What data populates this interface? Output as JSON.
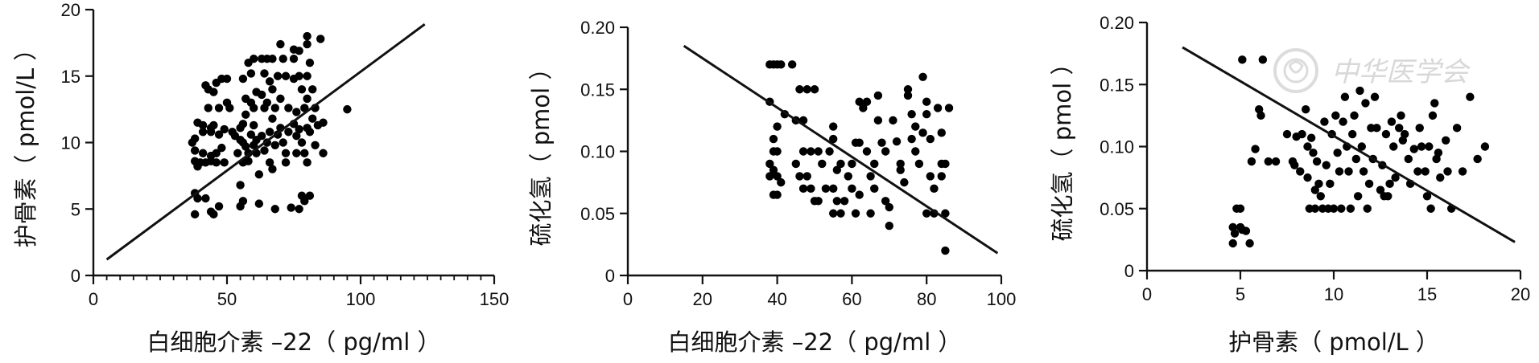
{
  "watermark": {
    "text": "中华医学会",
    "color": "#d9d9d9"
  },
  "chart_data": [
    {
      "type": "scatter",
      "xlabel": "白细胞介素 –22（ pg/ml ）",
      "ylabel": "护骨素（ pmol/L ）",
      "xlim": [
        0,
        150
      ],
      "ylim": [
        0,
        20
      ],
      "xticks": [
        0,
        50,
        100,
        150
      ],
      "yticks": [
        0,
        5,
        10,
        15,
        20
      ],
      "x_minor_step": 5,
      "point_color": "#000000",
      "fit_line": [
        [
          5,
          1.2
        ],
        [
          124,
          18.9
        ]
      ],
      "points": [
        [
          37,
          10.0
        ],
        [
          38,
          10.3
        ],
        [
          38,
          9.4
        ],
        [
          39,
          11.5
        ],
        [
          38,
          8.6
        ],
        [
          39,
          8.2
        ],
        [
          38,
          6.2
        ],
        [
          39,
          5.8
        ],
        [
          38,
          4.6
        ],
        [
          40,
          8.5
        ],
        [
          41,
          10.8
        ],
        [
          41,
          11.3
        ],
        [
          41,
          9.2
        ],
        [
          42,
          8.5
        ],
        [
          42,
          14.3
        ],
        [
          42,
          5.8
        ],
        [
          43,
          14.0
        ],
        [
          43,
          12.6
        ],
        [
          44,
          11.1
        ],
        [
          44,
          10.8
        ],
        [
          44,
          9.0
        ],
        [
          44,
          8.6
        ],
        [
          44,
          4.8
        ],
        [
          45,
          13.8
        ],
        [
          45,
          11.3
        ],
        [
          45,
          4.6
        ],
        [
          46,
          14.5
        ],
        [
          46,
          9.2
        ],
        [
          46,
          8.5
        ],
        [
          47,
          10.6
        ],
        [
          47,
          12.6
        ],
        [
          47,
          5.2
        ],
        [
          48,
          14.8
        ],
        [
          48,
          9.6
        ],
        [
          49,
          11.0
        ],
        [
          49,
          8.5
        ],
        [
          50,
          13.0
        ],
        [
          50,
          14.8
        ],
        [
          51,
          12.6
        ],
        [
          52,
          10.8
        ],
        [
          53,
          10.5
        ],
        [
          54,
          9.2
        ],
        [
          55,
          11.1
        ],
        [
          55,
          10.2
        ],
        [
          55,
          6.8
        ],
        [
          55,
          5.2
        ],
        [
          56,
          14.8
        ],
        [
          56,
          11.4
        ],
        [
          56,
          10.0
        ],
        [
          56,
          8.5
        ],
        [
          56,
          5.6
        ],
        [
          57,
          13.3
        ],
        [
          57,
          12.1
        ],
        [
          57,
          9.7
        ],
        [
          58,
          16.0
        ],
        [
          58,
          9.2
        ],
        [
          58,
          8.6
        ],
        [
          59,
          15.2
        ],
        [
          59,
          13.0
        ],
        [
          59,
          10.6
        ],
        [
          60,
          16.3
        ],
        [
          60,
          12.6
        ],
        [
          60,
          11.3
        ],
        [
          60,
          9.8
        ],
        [
          61,
          13.8
        ],
        [
          61,
          10.2
        ],
        [
          61,
          9.2
        ],
        [
          62,
          7.6
        ],
        [
          62,
          5.4
        ],
        [
          63,
          16.3
        ],
        [
          63,
          13.6
        ],
        [
          63,
          10.5
        ],
        [
          64,
          15.2
        ],
        [
          64,
          12.6
        ],
        [
          64,
          9.4
        ],
        [
          65,
          16.3
        ],
        [
          65,
          13.0
        ],
        [
          65,
          10.0
        ],
        [
          66,
          14.6
        ],
        [
          66,
          10.8
        ],
        [
          66,
          8.5
        ],
        [
          67,
          16.3
        ],
        [
          67,
          14.0
        ],
        [
          67,
          11.8
        ],
        [
          67,
          8.0
        ],
        [
          68,
          12.6
        ],
        [
          68,
          9.8
        ],
        [
          68,
          5.0
        ],
        [
          69,
          15.0
        ],
        [
          69,
          10.6
        ],
        [
          70,
          17.4
        ],
        [
          70,
          13.3
        ],
        [
          70,
          11.1
        ],
        [
          71,
          16.3
        ],
        [
          71,
          10.0
        ],
        [
          72,
          15.0
        ],
        [
          72,
          9.2
        ],
        [
          72,
          8.5
        ],
        [
          73,
          12.6
        ],
        [
          73,
          10.8
        ],
        [
          74,
          5.1
        ],
        [
          75,
          17.0
        ],
        [
          75,
          16.3
        ],
        [
          75,
          14.8
        ],
        [
          75,
          11.4
        ],
        [
          76,
          12.3
        ],
        [
          76,
          10.5
        ],
        [
          76,
          9.2
        ],
        [
          77,
          16.9
        ],
        [
          77,
          15.0
        ],
        [
          77,
          11.0
        ],
        [
          77,
          5.0
        ],
        [
          78,
          14.0
        ],
        [
          78,
          10.0
        ],
        [
          78,
          6.0
        ],
        [
          79,
          12.6
        ],
        [
          79,
          9.2
        ],
        [
          79,
          5.6
        ],
        [
          80,
          18.0
        ],
        [
          80,
          17.4
        ],
        [
          80,
          15.0
        ],
        [
          80,
          13.3
        ],
        [
          80,
          11.1
        ],
        [
          80,
          8.5
        ],
        [
          81,
          16.0
        ],
        [
          81,
          10.8
        ],
        [
          81,
          6.0
        ],
        [
          82,
          14.0
        ],
        [
          82,
          11.8
        ],
        [
          83,
          12.6
        ],
        [
          83,
          9.8
        ],
        [
          84,
          11.3
        ],
        [
          85,
          17.8
        ],
        [
          86,
          11.5
        ],
        [
          86,
          9.2
        ],
        [
          95,
          12.5
        ]
      ]
    },
    {
      "type": "scatter",
      "xlabel": "白细胞介素 –22（ pg/ml ）",
      "ylabel": "硫化氢（ pmol ）",
      "xlim": [
        0,
        100
      ],
      "ylim": [
        0,
        0.2
      ],
      "xticks": [
        0,
        20,
        40,
        60,
        80,
        100
      ],
      "yticks": [
        0,
        0.05,
        0.1,
        0.15,
        0.2
      ],
      "ytick_labels": [
        "0",
        "0.05",
        "0.10",
        "0.15",
        "0.20"
      ],
      "point_color": "#000000",
      "fit_line": [
        [
          15,
          0.185
        ],
        [
          99,
          0.018
        ]
      ],
      "points": [
        [
          38,
          0.17
        ],
        [
          39,
          0.17
        ],
        [
          40,
          0.17
        ],
        [
          41,
          0.17
        ],
        [
          44,
          0.17
        ],
        [
          38,
          0.14
        ],
        [
          39,
          0.11
        ],
        [
          40,
          0.12
        ],
        [
          39,
          0.1
        ],
        [
          40,
          0.1
        ],
        [
          38,
          0.09
        ],
        [
          39,
          0.085
        ],
        [
          38,
          0.08
        ],
        [
          40,
          0.08
        ],
        [
          41,
          0.075
        ],
        [
          39,
          0.065
        ],
        [
          40,
          0.065
        ],
        [
          42,
          0.13
        ],
        [
          45,
          0.125
        ],
        [
          46,
          0.15
        ],
        [
          47,
          0.125
        ],
        [
          48,
          0.15
        ],
        [
          50,
          0.15
        ],
        [
          45,
          0.09
        ],
        [
          47,
          0.1
        ],
        [
          49,
          0.1
        ],
        [
          46,
          0.08
        ],
        [
          48,
          0.08
        ],
        [
          47,
          0.07
        ],
        [
          49,
          0.07
        ],
        [
          51,
          0.1
        ],
        [
          52,
          0.09
        ],
        [
          53,
          0.07
        ],
        [
          50,
          0.06
        ],
        [
          51,
          0.06
        ],
        [
          54,
          0.1
        ],
        [
          55,
          0.12
        ],
        [
          55,
          0.11
        ],
        [
          56,
          0.085
        ],
        [
          57,
          0.09
        ],
        [
          55,
          0.07
        ],
        [
          56,
          0.06
        ],
        [
          55,
          0.05
        ],
        [
          57,
          0.05
        ],
        [
          58,
          0.06
        ],
        [
          59,
          0.08
        ],
        [
          60,
          0.09
        ],
        [
          61,
          0.107
        ],
        [
          62,
          0.107
        ],
        [
          60,
          0.07
        ],
        [
          62,
          0.065
        ],
        [
          61,
          0.05
        ],
        [
          62,
          0.14
        ],
        [
          63,
          0.135
        ],
        [
          64,
          0.14
        ],
        [
          64,
          0.1
        ],
        [
          65,
          0.08
        ],
        [
          66,
          0.09
        ],
        [
          66,
          0.07
        ],
        [
          65,
          0.05
        ],
        [
          67,
          0.145
        ],
        [
          67,
          0.125
        ],
        [
          68,
          0.107
        ],
        [
          69,
          0.1
        ],
        [
          69,
          0.06
        ],
        [
          70,
          0.055
        ],
        [
          70,
          0.04
        ],
        [
          71,
          0.125
        ],
        [
          72,
          0.108
        ],
        [
          73,
          0.09
        ],
        [
          73,
          0.085
        ],
        [
          74,
          0.075
        ],
        [
          75,
          0.145
        ],
        [
          75,
          0.15
        ],
        [
          76,
          0.13
        ],
        [
          76,
          0.11
        ],
        [
          77,
          0.12
        ],
        [
          77,
          0.1
        ],
        [
          78,
          0.09
        ],
        [
          79,
          0.115
        ],
        [
          79,
          0.16
        ],
        [
          80,
          0.14
        ],
        [
          80,
          0.13
        ],
        [
          81,
          0.11
        ],
        [
          81,
          0.08
        ],
        [
          82,
          0.07
        ],
        [
          80,
          0.05
        ],
        [
          82,
          0.05
        ],
        [
          83,
          0.135
        ],
        [
          84,
          0.115
        ],
        [
          84,
          0.09
        ],
        [
          85,
          0.09
        ],
        [
          84,
          0.08
        ],
        [
          85,
          0.05
        ],
        [
          86,
          0.135
        ],
        [
          85,
          0.02
        ]
      ]
    },
    {
      "type": "scatter",
      "xlabel": "护骨素（ pmol/L ）",
      "ylabel": "硫化氢（ pmol ）",
      "xlim": [
        0,
        20
      ],
      "ylim": [
        0,
        0.2
      ],
      "xticks": [
        0,
        5,
        10,
        15,
        20
      ],
      "yticks": [
        0,
        0.05,
        0.1,
        0.15,
        0.2
      ],
      "ytick_labels": [
        "0",
        "0.05",
        "0.10",
        "0.15",
        "0.20"
      ],
      "point_color": "#000000",
      "fit_line": [
        [
          1.9,
          0.18
        ],
        [
          19.7,
          0.023
        ]
      ],
      "points": [
        [
          4.6,
          0.022
        ],
        [
          4.6,
          0.035
        ],
        [
          4.7,
          0.03
        ],
        [
          4.8,
          0.05
        ],
        [
          5.0,
          0.05
        ],
        [
          5.0,
          0.035
        ],
        [
          5.1,
          0.033
        ],
        [
          5.3,
          0.032
        ],
        [
          5.5,
          0.022
        ],
        [
          5.1,
          0.17
        ],
        [
          5.6,
          0.088
        ],
        [
          5.8,
          0.098
        ],
        [
          6.0,
          0.13
        ],
        [
          6.1,
          0.125
        ],
        [
          6.2,
          0.17
        ],
        [
          6.5,
          0.088
        ],
        [
          6.9,
          0.088
        ],
        [
          7.5,
          0.11
        ],
        [
          7.8,
          0.088
        ],
        [
          7.9,
          0.085
        ],
        [
          8.0,
          0.108
        ],
        [
          8.2,
          0.08
        ],
        [
          8.3,
          0.11
        ],
        [
          8.5,
          0.13
        ],
        [
          8.6,
          0.1
        ],
        [
          8.6,
          0.075
        ],
        [
          8.7,
          0.05
        ],
        [
          8.8,
          0.107
        ],
        [
          8.9,
          0.095
        ],
        [
          9.0,
          0.05
        ],
        [
          9.0,
          0.065
        ],
        [
          9.1,
          0.088
        ],
        [
          9.2,
          0.07
        ],
        [
          9.3,
          0.06
        ],
        [
          9.4,
          0.05
        ],
        [
          9.5,
          0.12
        ],
        [
          9.6,
          0.085
        ],
        [
          9.7,
          0.05
        ],
        [
          9.8,
          0.07
        ],
        [
          9.9,
          0.11
        ],
        [
          10.0,
          0.05
        ],
        [
          10.1,
          0.125
        ],
        [
          10.2,
          0.095
        ],
        [
          10.3,
          0.08
        ],
        [
          10.4,
          0.05
        ],
        [
          10.5,
          0.12
        ],
        [
          10.6,
          0.14
        ],
        [
          10.7,
          0.1
        ],
        [
          10.8,
          0.08
        ],
        [
          10.9,
          0.05
        ],
        [
          11.0,
          0.11
        ],
        [
          11.1,
          0.125
        ],
        [
          11.2,
          0.09
        ],
        [
          11.3,
          0.06
        ],
        [
          11.4,
          0.145
        ],
        [
          11.5,
          0.1
        ],
        [
          11.6,
          0.08
        ],
        [
          11.7,
          0.135
        ],
        [
          11.8,
          0.05
        ],
        [
          11.9,
          0.07
        ],
        [
          12.0,
          0.115
        ],
        [
          12.1,
          0.09
        ],
        [
          12.2,
          0.14
        ],
        [
          12.3,
          0.115
        ],
        [
          12.5,
          0.065
        ],
        [
          12.6,
          0.085
        ],
        [
          12.7,
          0.06
        ],
        [
          12.8,
          0.11
        ],
        [
          12.9,
          0.06
        ],
        [
          13.0,
          0.07
        ],
        [
          13.1,
          0.12
        ],
        [
          13.2,
          0.1
        ],
        [
          13.3,
          0.075
        ],
        [
          13.5,
          0.115
        ],
        [
          13.6,
          0.125
        ],
        [
          13.7,
          0.105
        ],
        [
          14.0,
          0.09
        ],
        [
          14.1,
          0.07
        ],
        [
          14.3,
          0.098
        ],
        [
          14.5,
          0.08
        ],
        [
          14.6,
          0.115
        ],
        [
          14.7,
          0.1
        ],
        [
          14.9,
          0.08
        ],
        [
          15.0,
          0.06
        ],
        [
          15.1,
          0.1
        ],
        [
          15.2,
          0.05
        ],
        [
          15.3,
          0.125
        ],
        [
          15.4,
          0.135
        ],
        [
          15.5,
          0.09
        ],
        [
          15.6,
          0.095
        ],
        [
          16.0,
          0.105
        ],
        [
          16.1,
          0.08
        ],
        [
          16.3,
          0.05
        ],
        [
          16.6,
          0.115
        ],
        [
          16.9,
          0.08
        ],
        [
          17.3,
          0.14
        ],
        [
          17.7,
          0.09
        ],
        [
          18.1,
          0.1
        ],
        [
          15.7,
          0.075
        ],
        [
          13.8,
          0.11
        ]
      ]
    }
  ]
}
